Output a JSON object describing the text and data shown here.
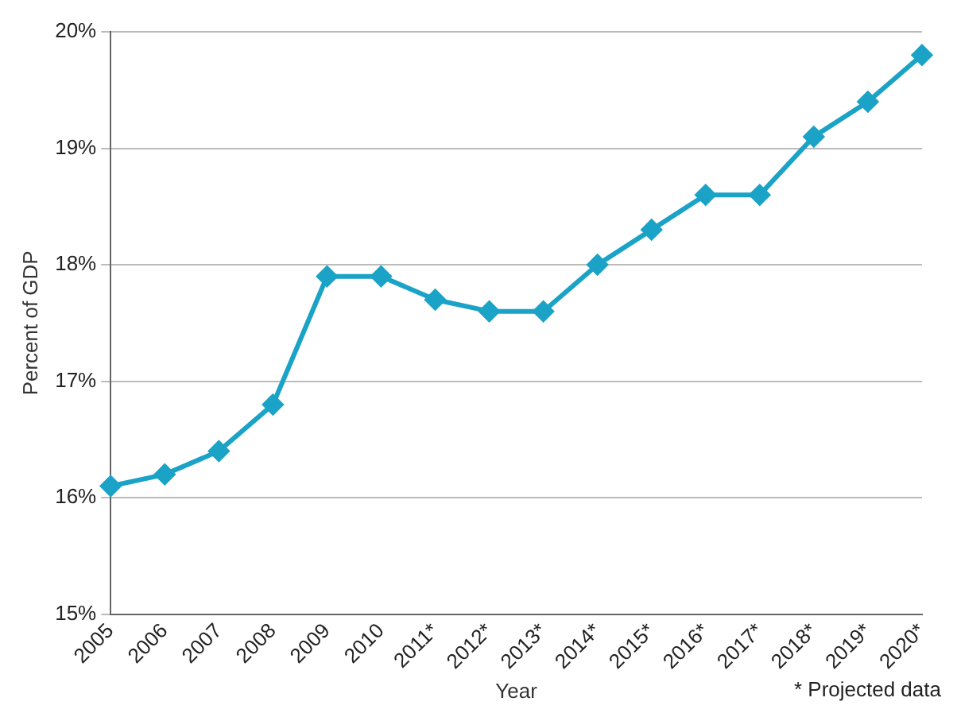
{
  "chart_data": {
    "type": "line",
    "xlabel": "Year",
    "ylabel": "Percent of GDP",
    "categories": [
      "2005",
      "2006",
      "2007",
      "2008",
      "2009",
      "2010",
      "2011*",
      "2012*",
      "2013*",
      "2014*",
      "2015*",
      "2016*",
      "2017*",
      "2018*",
      "2019*",
      "2020*"
    ],
    "series": [
      {
        "color": "#1aa3c6",
        "values": [
          16.1,
          16.2,
          16.4,
          16.8,
          17.9,
          17.9,
          17.7,
          17.6,
          17.6,
          18.0,
          18.3,
          18.6,
          18.6,
          19.1,
          19.4,
          19.8
        ]
      }
    ],
    "ylim": [
      15,
      20
    ],
    "yticks": [
      {
        "value": 15,
        "label": "15%"
      },
      {
        "value": 16,
        "label": "16%"
      },
      {
        "value": 17,
        "label": "17%"
      },
      {
        "value": 18,
        "label": "18%"
      },
      {
        "value": 19,
        "label": "19%"
      },
      {
        "value": 20,
        "label": "20%"
      }
    ],
    "grid": "y",
    "legend": false,
    "marker": "diamond",
    "line_style": "solid",
    "annotations": [
      "* Projected data"
    ]
  }
}
